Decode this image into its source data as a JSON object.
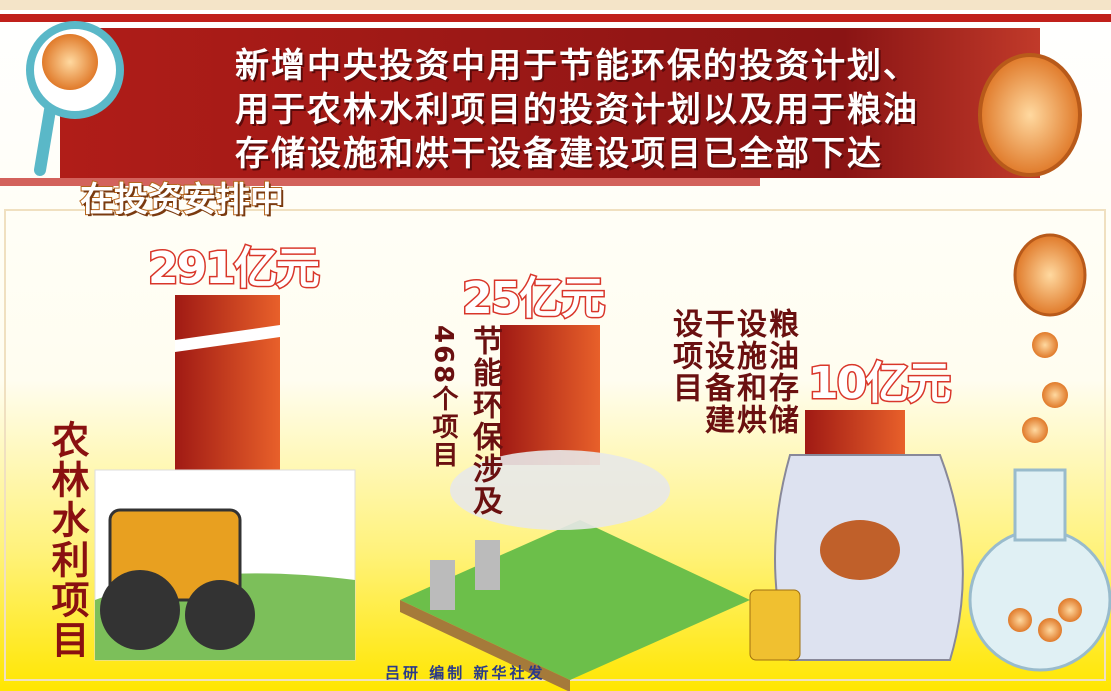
{
  "header": {
    "title_lines": [
      "新增中央投资中用于节能环保的投资计划、",
      "用于农林水利项目的投资计划以及用于粮油",
      "存储设施和烘干设备建设项目已全部下达"
    ],
    "subtitle": "在投资安排中"
  },
  "items": [
    {
      "label_columns": [
        "农林水利项目"
      ],
      "amount": "291亿元"
    },
    {
      "label_columns": [
        "节能环保涉及",
        "468个项目"
      ],
      "amount": "25亿元"
    },
    {
      "label_columns": [
        "粮油存储",
        "设施和烘",
        "干设备建",
        "设项目"
      ],
      "amount": "10亿元"
    }
  ],
  "footer": {
    "credit": "吕研 编制 新华社发"
  }
}
